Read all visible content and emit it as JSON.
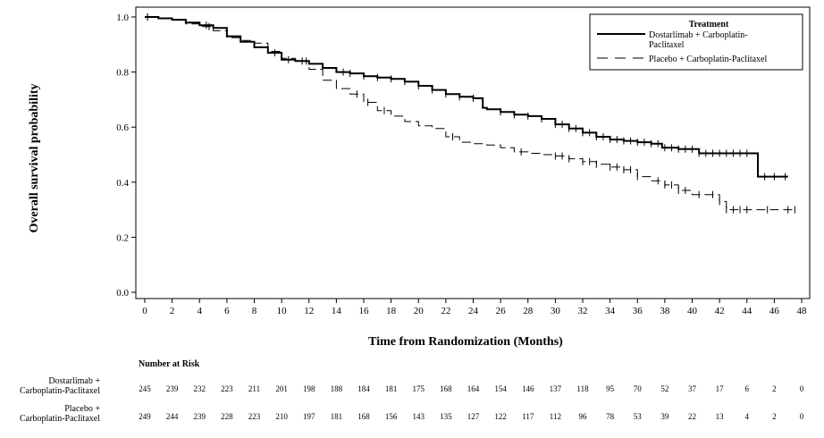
{
  "chart_data": {
    "type": "line",
    "subtype": "kaplan-meier",
    "xlabel": "Time from Randomization (Months)",
    "ylabel": "Overall survival probability",
    "xlim": [
      0,
      48
    ],
    "ylim": [
      0,
      1.0
    ],
    "xticks": [
      0,
      2,
      4,
      6,
      8,
      10,
      12,
      14,
      16,
      18,
      20,
      22,
      24,
      26,
      28,
      30,
      32,
      34,
      36,
      38,
      40,
      42,
      44,
      46,
      48
    ],
    "yticks": [
      0.0,
      0.2,
      0.4,
      0.6,
      0.8,
      1.0
    ],
    "yticklabels": [
      "0.0",
      "0.2",
      "0.4",
      "0.6",
      "0.8",
      "1.0"
    ],
    "grid": false,
    "legend": {
      "title": "Treatment",
      "placement": "top-right",
      "entries": [
        {
          "label_lines": [
            "Dostarlimab + Carboplatin-",
            "Paclitaxel"
          ],
          "line_style": "solid"
        },
        {
          "label_lines": [
            "Placebo + Carboplatin-Paclitaxel"
          ],
          "line_style": "dashed"
        }
      ]
    },
    "series": [
      {
        "line_style": "solid",
        "line_width": 2,
        "points": [
          [
            0,
            1.0
          ],
          [
            1,
            0.995
          ],
          [
            2,
            0.99
          ],
          [
            3,
            0.98
          ],
          [
            4,
            0.97
          ],
          [
            5,
            0.96
          ],
          [
            6,
            0.93
          ],
          [
            7,
            0.91
          ],
          [
            8,
            0.89
          ],
          [
            9,
            0.87
          ],
          [
            10,
            0.845
          ],
          [
            11,
            0.84
          ],
          [
            12,
            0.83
          ],
          [
            13,
            0.815
          ],
          [
            14,
            0.8
          ],
          [
            15,
            0.795
          ],
          [
            16,
            0.785
          ],
          [
            17,
            0.78
          ],
          [
            18,
            0.775
          ],
          [
            19,
            0.765
          ],
          [
            20,
            0.75
          ],
          [
            21,
            0.735
          ],
          [
            22,
            0.72
          ],
          [
            23,
            0.71
          ],
          [
            24,
            0.705
          ],
          [
            24.7,
            0.67
          ],
          [
            25,
            0.665
          ],
          [
            26,
            0.655
          ],
          [
            27,
            0.645
          ],
          [
            28,
            0.64
          ],
          [
            29,
            0.63
          ],
          [
            30,
            0.61
          ],
          [
            31,
            0.595
          ],
          [
            32,
            0.58
          ],
          [
            33,
            0.565
          ],
          [
            34,
            0.555
          ],
          [
            35,
            0.55
          ],
          [
            36,
            0.545
          ],
          [
            37,
            0.54
          ],
          [
            37.8,
            0.525
          ],
          [
            39,
            0.52
          ],
          [
            40,
            0.52
          ],
          [
            40.5,
            0.505
          ],
          [
            44.8,
            0.505
          ],
          [
            44.8,
            0.42
          ],
          [
            47,
            0.42
          ]
        ],
        "censor_x": [
          0.2,
          4.5,
          9.5,
          10.5,
          11.5,
          14.5,
          15,
          16,
          17,
          18,
          19,
          20,
          21,
          22,
          23,
          24,
          26,
          27,
          28,
          29,
          30,
          30.5,
          31,
          31.5,
          32,
          32.5,
          33,
          33.5,
          34,
          34.5,
          35,
          35.5,
          36,
          36.5,
          37,
          37.5,
          38,
          38.5,
          39,
          39.5,
          40,
          40.5,
          41,
          41.5,
          42,
          42.5,
          43,
          43.5,
          44,
          45.3,
          46,
          46.8
        ]
      },
      {
        "line_style": "dashed",
        "line_width": 1,
        "points": [
          [
            0,
            1.0
          ],
          [
            1,
            0.995
          ],
          [
            2,
            0.99
          ],
          [
            3,
            0.975
          ],
          [
            4,
            0.965
          ],
          [
            5,
            0.95
          ],
          [
            6,
            0.925
          ],
          [
            7,
            0.915
          ],
          [
            8,
            0.905
          ],
          [
            9,
            0.875
          ],
          [
            10,
            0.85
          ],
          [
            11,
            0.84
          ],
          [
            12,
            0.81
          ],
          [
            13,
            0.77
          ],
          [
            14,
            0.74
          ],
          [
            15,
            0.72
          ],
          [
            16,
            0.69
          ],
          [
            17,
            0.66
          ],
          [
            18,
            0.64
          ],
          [
            19,
            0.62
          ],
          [
            20,
            0.605
          ],
          [
            21,
            0.595
          ],
          [
            22,
            0.565
          ],
          [
            23,
            0.545
          ],
          [
            24,
            0.54
          ],
          [
            25,
            0.535
          ],
          [
            26,
            0.525
          ],
          [
            27,
            0.51
          ],
          [
            28,
            0.505
          ],
          [
            29,
            0.5
          ],
          [
            30,
            0.495
          ],
          [
            31,
            0.485
          ],
          [
            32,
            0.475
          ],
          [
            33,
            0.465
          ],
          [
            34,
            0.455
          ],
          [
            35,
            0.445
          ],
          [
            36,
            0.42
          ],
          [
            37,
            0.405
          ],
          [
            38,
            0.39
          ],
          [
            39,
            0.37
          ],
          [
            40,
            0.355
          ],
          [
            41,
            0.355
          ],
          [
            42,
            0.33
          ],
          [
            42.5,
            0.3
          ],
          [
            47.5,
            0.3
          ]
        ],
        "censor_x": [
          0.2,
          4.7,
          11.8,
          15.5,
          16.3,
          17.5,
          22.5,
          27.5,
          30,
          30.5,
          31,
          32,
          32.5,
          33,
          34,
          34.5,
          35,
          35.5,
          36,
          37.5,
          38,
          38.5,
          39,
          39.5,
          40.5,
          41.5,
          42,
          42.5,
          43,
          43.5,
          44,
          45.5,
          47,
          47.5
        ]
      }
    ],
    "risk_table": {
      "title": "Number at Risk",
      "times": [
        0,
        2,
        4,
        6,
        8,
        10,
        12,
        14,
        16,
        18,
        20,
        22,
        24,
        26,
        28,
        30,
        32,
        34,
        36,
        38,
        40,
        42,
        44,
        46,
        48
      ],
      "rows": [
        {
          "label_lines": [
            "Dostarlimab +",
            "Carboplatin-Paclitaxel"
          ],
          "counts": [
            245,
            239,
            232,
            223,
            211,
            201,
            198,
            188,
            184,
            181,
            175,
            168,
            164,
            154,
            146,
            137,
            118,
            95,
            70,
            52,
            37,
            17,
            6,
            2,
            0
          ]
        },
        {
          "label_lines": [
            "Placebo +",
            "Carboplatin-Paclitaxel"
          ],
          "counts": [
            249,
            244,
            239,
            228,
            223,
            210,
            197,
            181,
            168,
            156,
            143,
            135,
            127,
            122,
            117,
            112,
            96,
            78,
            53,
            39,
            22,
            13,
            4,
            2,
            0
          ]
        }
      ]
    }
  }
}
